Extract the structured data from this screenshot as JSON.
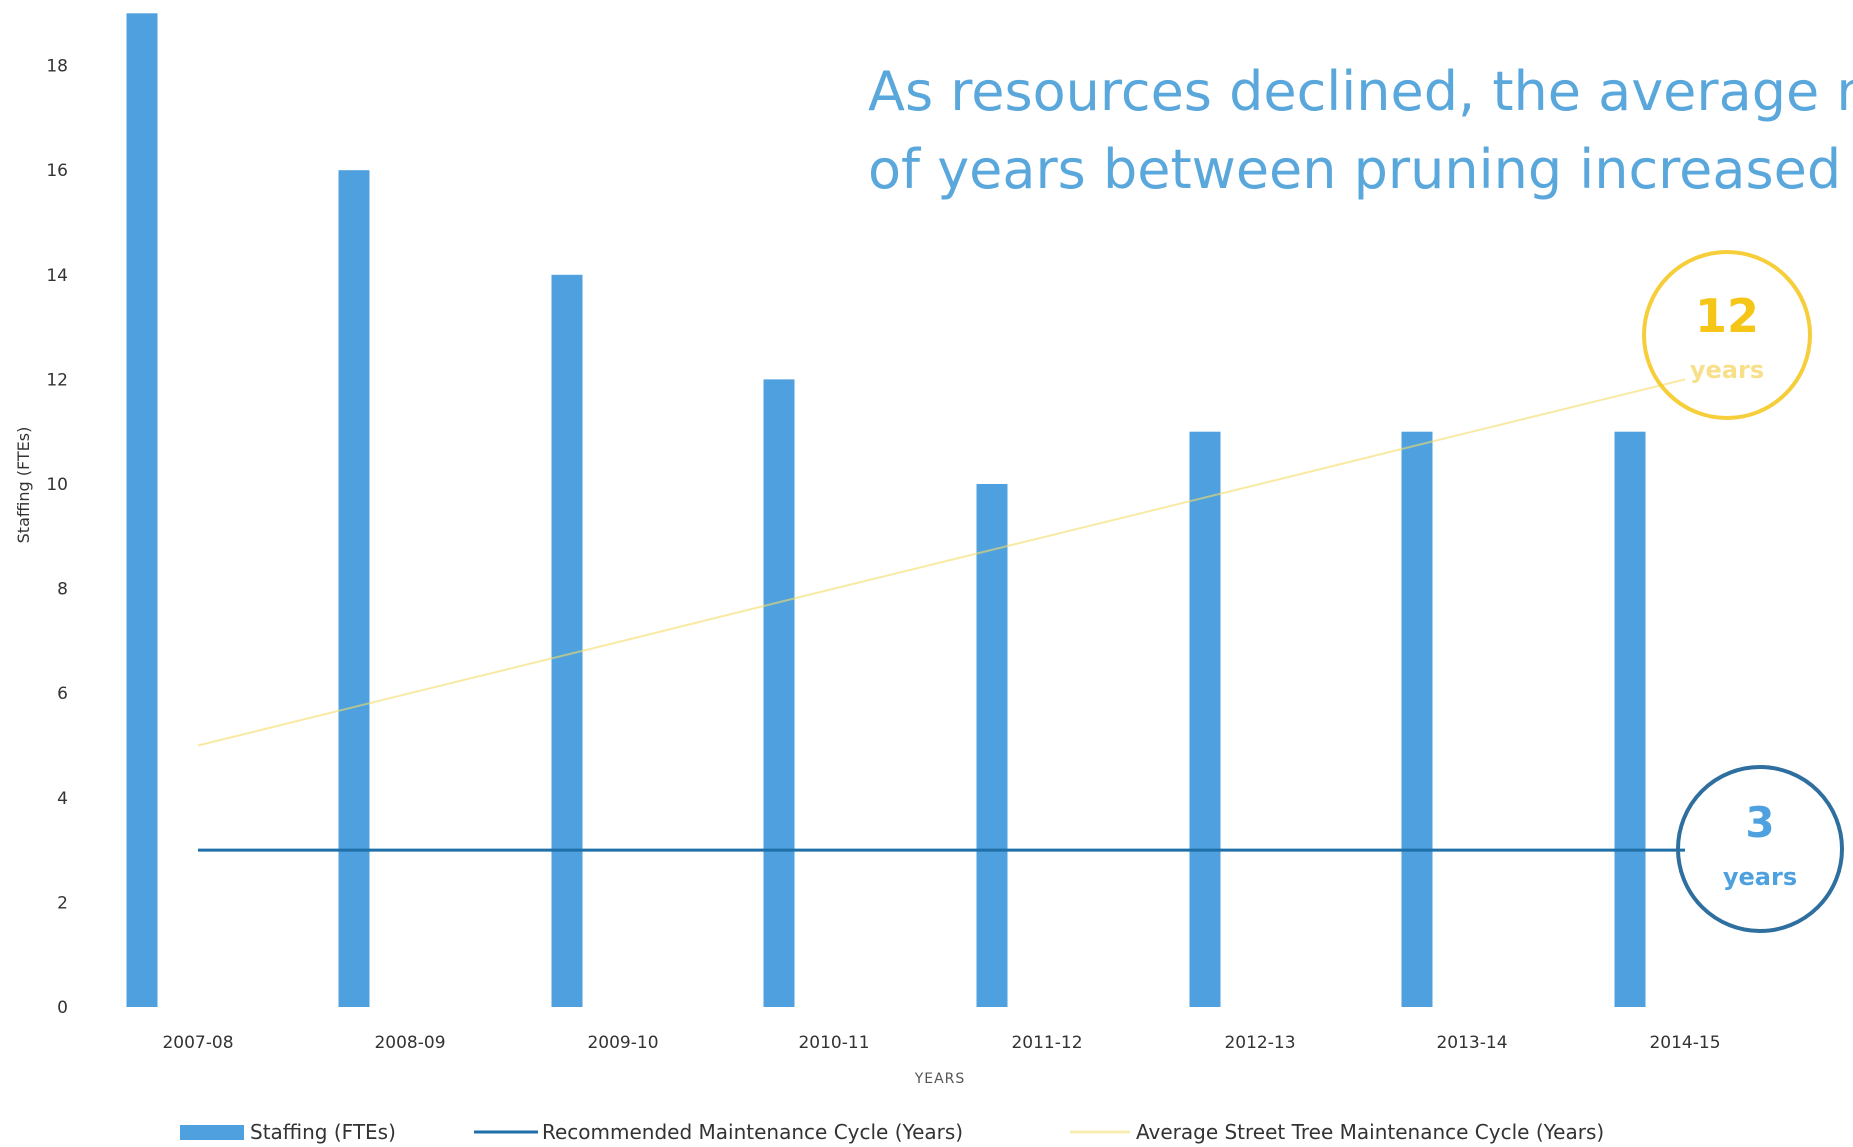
{
  "chart_data": {
    "type": "bar",
    "title_lines": [
      "As resources declined, the average nu",
      "of years between pruning increased"
    ],
    "xlabel": "YEARS",
    "ylabel": "Staffing (FTEs)",
    "ylim": [
      0,
      19
    ],
    "yticks": [
      0,
      2,
      4,
      6,
      8,
      10,
      12,
      14,
      16,
      18
    ],
    "categories": [
      "2007-08",
      "2008-09",
      "2009-10",
      "2010-11",
      "2011-12",
      "2012-13",
      "2013-14",
      "2014-15"
    ],
    "series": [
      {
        "name": "Staffing (FTEs)",
        "type": "bar",
        "color": "#4ea1de",
        "values": [
          19,
          16,
          14,
          12,
          10,
          11,
          11,
          11
        ]
      },
      {
        "name": "Recommended Maintenance Cycle (Years)",
        "type": "line",
        "color": "#1f6fa8",
        "values": [
          3,
          3,
          3,
          3,
          3,
          3,
          3,
          3
        ]
      },
      {
        "name": "Average Street Tree Maintenance Cycle (Years)",
        "type": "line",
        "color": "#f3dc68",
        "values": [
          5,
          6,
          7,
          8,
          9,
          10,
          11,
          12
        ]
      }
    ],
    "callouts": [
      {
        "value": "12",
        "label": "years",
        "color": "#f5c518"
      },
      {
        "value": "3",
        "label": "years",
        "color": "#2e6fa0"
      }
    ],
    "grid": false,
    "legend_position": "bottom"
  }
}
